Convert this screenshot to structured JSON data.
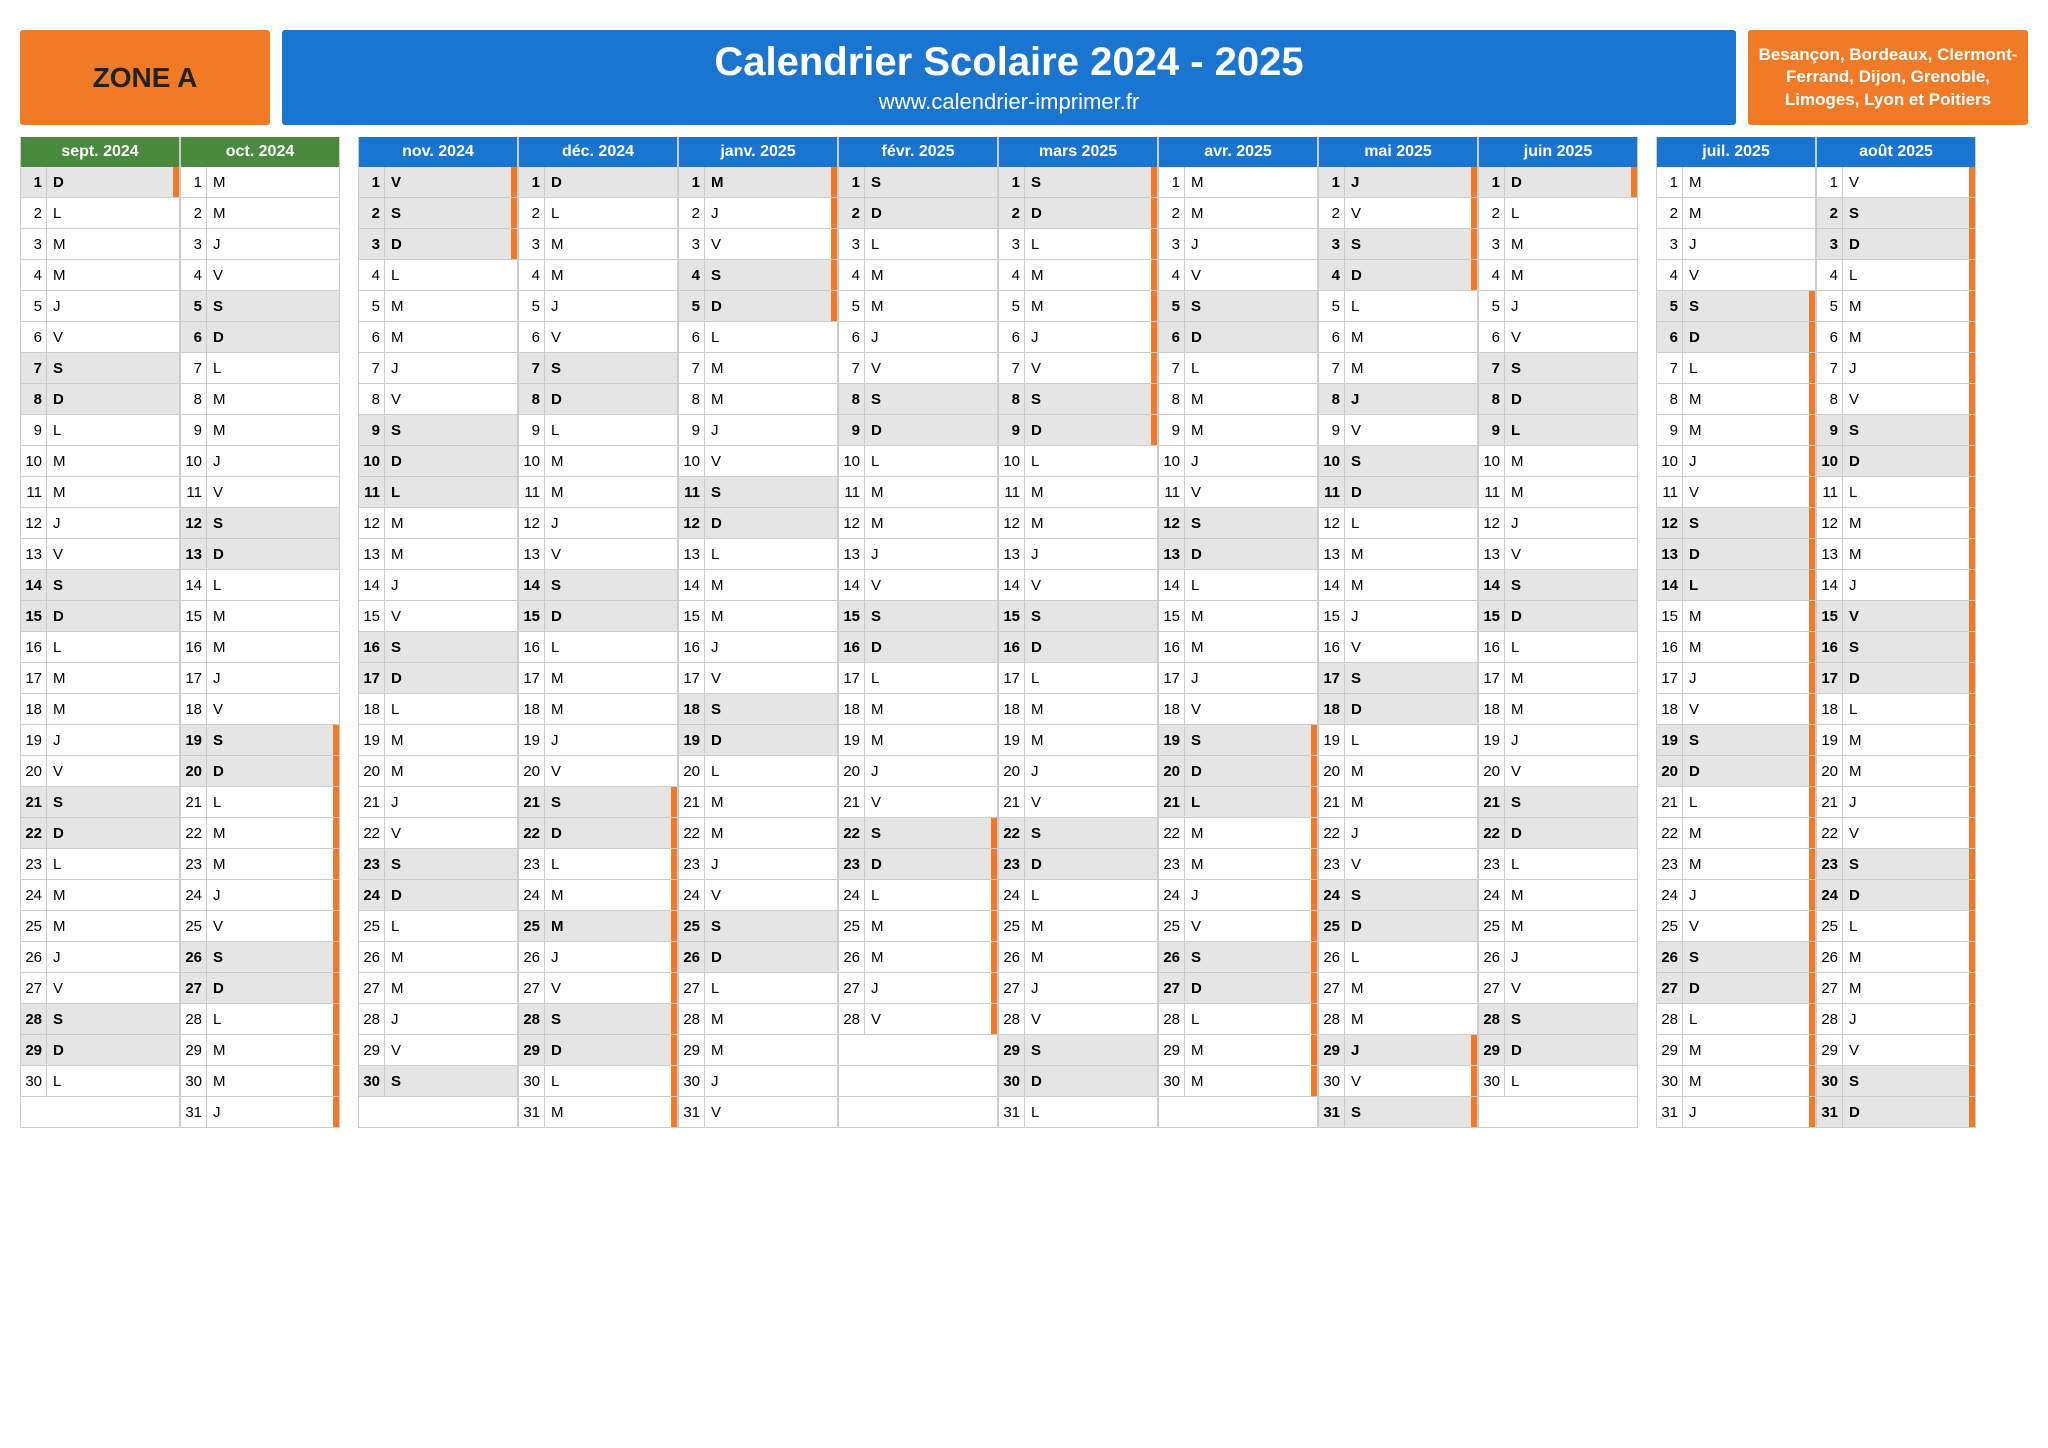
{
  "colors": {
    "orange": "#f07a26",
    "blue": "#1a75d1",
    "green": "#4a8a3f",
    "gray": "#e5e5e5",
    "border": "#cccccc",
    "text": "#222222"
  },
  "header": {
    "zone": "ZONE A",
    "title": "Calendrier Scolaire 2024 - 2025",
    "url": "www.calendrier-imprimer.fr",
    "cities": "Besançon, Bordeaux, Clermont-Ferrand, Dijon, Grenoble, Limoges, Lyon et Poitiers"
  },
  "day_letters": {
    "Mon": "L",
    "Tue": "M",
    "Wed": "M",
    "Thu": "J",
    "Fri": "V",
    "Sat": "S",
    "Sun": "D"
  },
  "groups": [
    {
      "months": [
        {
          "label": "sept. 2024",
          "color": "#4a8a3f",
          "year": 2024,
          "month": 9,
          "ndays": 30
        },
        {
          "label": "oct. 2024",
          "color": "#4a8a3f",
          "year": 2024,
          "month": 10,
          "ndays": 31
        }
      ]
    },
    {
      "months": [
        {
          "label": "nov. 2024",
          "color": "#1a75d1",
          "year": 2024,
          "month": 11,
          "ndays": 30
        },
        {
          "label": "déc. 2024",
          "color": "#1a75d1",
          "year": 2024,
          "month": 12,
          "ndays": 31
        },
        {
          "label": "janv. 2025",
          "color": "#1a75d1",
          "year": 2025,
          "month": 1,
          "ndays": 31
        },
        {
          "label": "févr. 2025",
          "color": "#1a75d1",
          "year": 2025,
          "month": 2,
          "ndays": 28
        },
        {
          "label": "mars 2025",
          "color": "#1a75d1",
          "year": 2025,
          "month": 3,
          "ndays": 31
        },
        {
          "label": "avr. 2025",
          "color": "#1a75d1",
          "year": 2025,
          "month": 4,
          "ndays": 30
        },
        {
          "label": "mai 2025",
          "color": "#1a75d1",
          "year": 2025,
          "month": 5,
          "ndays": 31
        },
        {
          "label": "juin 2025",
          "color": "#1a75d1",
          "year": 2025,
          "month": 6,
          "ndays": 30
        }
      ]
    },
    {
      "months": [
        {
          "label": "juil. 2025",
          "color": "#1a75d1",
          "year": 2025,
          "month": 7,
          "ndays": 31
        },
        {
          "label": "août 2025",
          "color": "#1a75d1",
          "year": 2025,
          "month": 8,
          "ndays": 31
        }
      ]
    }
  ],
  "dow_seq": [
    "L",
    "M",
    "M",
    "J",
    "V",
    "S",
    "D"
  ],
  "start_dow_index": {
    "2024-9": 6,
    "2024-10": 1,
    "2024-11": 4,
    "2024-12": 6,
    "2025-1": 2,
    "2025-2": 5,
    "2025-3": 5,
    "2025-4": 1,
    "2025-5": 3,
    "2025-6": 6,
    "2025-7": 1,
    "2025-8": 4
  },
  "holidays_orange_bar": {
    "2024-9": [
      1
    ],
    "2024-10": [
      19,
      20,
      21,
      22,
      23,
      24,
      25,
      26,
      27,
      28,
      29,
      30,
      31
    ],
    "2024-11": [
      1,
      2,
      3
    ],
    "2024-12": [
      21,
      22,
      23,
      24,
      25,
      26,
      27,
      28,
      29,
      30,
      31
    ],
    "2025-1": [
      1,
      2,
      3,
      4,
      5
    ],
    "2025-2": [
      22,
      23,
      24,
      25,
      26,
      27,
      28
    ],
    "2025-3": [
      1,
      2,
      3,
      4,
      5,
      6,
      7,
      8,
      9
    ],
    "2025-4": [
      19,
      20,
      21,
      22,
      23,
      24,
      25,
      26,
      27,
      28,
      29,
      30
    ],
    "2025-5": [
      1,
      2,
      3,
      4,
      29,
      30,
      31
    ],
    "2025-6": [
      1
    ],
    "2025-7": [
      5,
      6,
      7,
      8,
      9,
      10,
      11,
      12,
      13,
      14,
      15,
      16,
      17,
      18,
      19,
      20,
      21,
      22,
      23,
      24,
      25,
      26,
      27,
      28,
      29,
      30,
      31
    ],
    "2025-8": [
      1,
      2,
      3,
      4,
      5,
      6,
      7,
      8,
      9,
      10,
      11,
      12,
      13,
      14,
      15,
      16,
      17,
      18,
      19,
      20,
      21,
      22,
      23,
      24,
      25,
      26,
      27,
      28,
      29,
      30,
      31
    ]
  },
  "gray_extra": {
    "2025-4": [
      21
    ],
    "2025-5": [
      1,
      8,
      29
    ],
    "2025-6": [
      9
    ],
    "2025-7": [
      14
    ],
    "2025-8": [
      15
    ],
    "2024-11": [
      1,
      11
    ],
    "2024-12": [
      25
    ],
    "2025-1": [
      1
    ]
  }
}
